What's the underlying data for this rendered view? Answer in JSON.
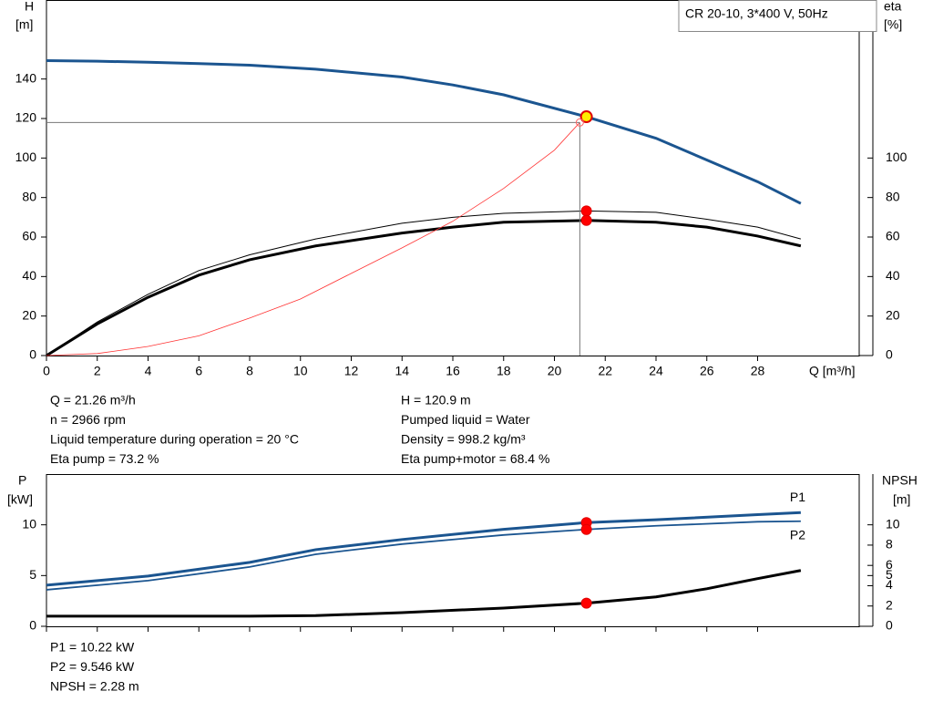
{
  "chart_data": [
    {
      "type": "line",
      "title": "CR 20-10, 3*400 V, 50Hz",
      "ylabel": "H",
      "yunit": "[m]",
      "y2label": "eta",
      "y2unit": "[%]",
      "xlabel": "Q [m³/h]",
      "xlim": [
        0,
        32
      ],
      "ylim": [
        0,
        180
      ],
      "y2lim": [
        0,
        180
      ],
      "xticks": [
        0,
        2,
        4,
        6,
        8,
        10,
        12,
        14,
        16,
        18,
        20,
        22,
        24,
        26,
        28
      ],
      "yticks": [
        0,
        20,
        40,
        60,
        80,
        100,
        120,
        140
      ],
      "y2ticks": [
        0,
        20,
        40,
        60,
        80,
        100
      ],
      "show_xtick_labels": true,
      "duty_q": 21.26,
      "series": [
        {
          "color": "#1b5590",
          "axis": "y",
          "x": [
            0,
            2,
            4,
            6,
            8,
            10.6,
            14,
            16,
            18,
            21.26,
            24,
            26,
            28,
            29.7
          ],
          "values": [
            149.3,
            149,
            148.5,
            147.8,
            147,
            145,
            141,
            137,
            132,
            120.9,
            110,
            99,
            88,
            77
          ]
        },
        {
          "color": "#000000",
          "axis": "y2",
          "x": [
            0,
            2,
            4,
            6,
            8,
            10.6,
            14,
            16,
            18,
            21.26,
            24,
            26,
            28,
            29.7
          ],
          "values": [
            0,
            17,
            31,
            43,
            51,
            59,
            67,
            70,
            72,
            73.2,
            72.5,
            69,
            65,
            59
          ]
        },
        {
          "color": "#000000",
          "axis": "y2",
          "x": [
            0,
            2,
            4,
            6,
            8,
            10.6,
            14,
            16,
            18,
            21.26,
            24,
            26,
            28,
            29.7
          ],
          "values": [
            0,
            16,
            29.5,
            40.7,
            48.5,
            55.5,
            62,
            65,
            67.5,
            68.4,
            67.5,
            65,
            60.5,
            55.5
          ]
        },
        {
          "color": "#ff3333",
          "axis": "y",
          "x": [
            0,
            2,
            4,
            6,
            8,
            10,
            12,
            14,
            16,
            18,
            20,
            21
          ],
          "values": [
            0,
            1,
            4.6,
            10,
            19,
            28.6,
            41.6,
            54.5,
            68,
            84.6,
            104,
            118
          ]
        }
      ]
    },
    {
      "type": "line",
      "ylabel": "P",
      "yunit": "[kW]",
      "y2label": "NPSH",
      "y2unit": "[m]",
      "xlim": [
        0,
        32
      ],
      "ylim": [
        0,
        15
      ],
      "y2lim": [
        0,
        15
      ],
      "xticks": [
        0,
        2,
        4,
        6,
        8,
        10,
        12,
        14,
        16,
        18,
        20,
        22,
        24,
        26,
        28
      ],
      "yticks": [
        0,
        5,
        10
      ],
      "y2ticks": [
        0,
        2,
        4,
        5,
        6,
        8,
        10
      ],
      "show_xtick_labels": false,
      "duty_q": 21.26,
      "series": [
        {
          "name": "P1",
          "color": "#1b5590",
          "axis": "y",
          "x": [
            0,
            4,
            8,
            10.6,
            14,
            18,
            21.26,
            24,
            28,
            29.7
          ],
          "values": [
            4.05,
            4.95,
            6.3,
            7.55,
            8.55,
            9.55,
            10.22,
            10.5,
            11,
            11.2
          ]
        },
        {
          "name": "P2",
          "color": "#1b5590",
          "axis": "y",
          "x": [
            0,
            4,
            8,
            10.6,
            14,
            18,
            21.26,
            24,
            28,
            29.7
          ],
          "values": [
            3.6,
            4.5,
            5.85,
            7.1,
            8.1,
            9,
            9.546,
            9.9,
            10.3,
            10.35
          ]
        },
        {
          "color": "#000000",
          "axis": "y2",
          "x": [
            0,
            4,
            8,
            10.6,
            14,
            18,
            21.26,
            24,
            26,
            28,
            29.7
          ],
          "values": [
            1,
            1,
            1,
            1.05,
            1.35,
            1.8,
            2.28,
            2.9,
            3.7,
            4.7,
            5.5
          ]
        }
      ]
    }
  ],
  "info": {
    "left": [
      "Q = 21.26 m³/h",
      "n = 2966 rpm",
      "Liquid temperature during operation = 20 °C",
      "Eta pump = 73.2 %"
    ],
    "right": [
      "H = 120.9 m",
      "Pumped liquid = Water",
      "Density = 998.2 kg/m³",
      "Eta pump+motor = 68.4 %"
    ],
    "bottom": [
      "P1 = 10.22 kW",
      "P2 = 9.546 kW",
      "NPSH = 2.28 m"
    ]
  }
}
